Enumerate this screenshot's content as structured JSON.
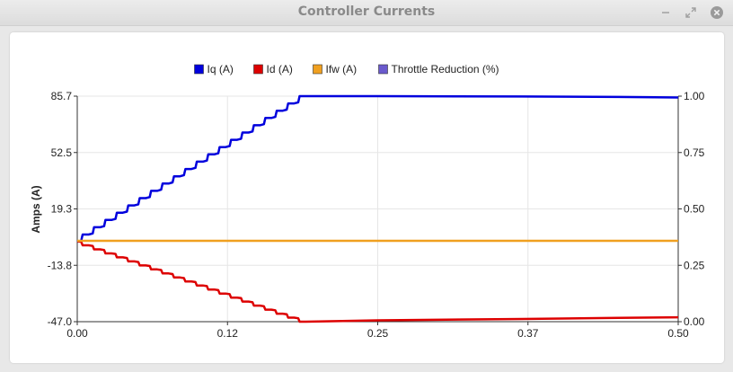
{
  "window": {
    "title": "Controller Currents",
    "buttons": [
      {
        "name": "minimize",
        "icon": "minimize-icon"
      },
      {
        "name": "maximize",
        "icon": "maximize-icon"
      },
      {
        "name": "close",
        "icon": "close-icon"
      }
    ]
  },
  "chart_data": {
    "type": "line",
    "title": "",
    "xlabel": "",
    "ylabel": "Amps (A)",
    "y2label": "",
    "xlim": [
      0,
      0.5
    ],
    "ylim": [
      -47.0,
      85.7
    ],
    "y2lim": [
      0,
      1
    ],
    "x_ticks": [
      "0.00",
      "0.12",
      "0.25",
      "0.37",
      "0.50"
    ],
    "y_ticks": [
      "85.7",
      "52.5",
      "19.3",
      "-13.8",
      "-47.0"
    ],
    "y2_ticks": [
      "1.00",
      "0.75",
      "0.50",
      "0.25",
      "0.00"
    ],
    "grid": true,
    "legend_position": "top-center",
    "series": [
      {
        "name": "Iq (A)",
        "color": "#0000dd",
        "axis": "left",
        "x": [
          0,
          0.19,
          0.25,
          0.37,
          0.45,
          0.5
        ],
        "y": [
          0,
          85.7,
          85.7,
          85.5,
          85.2,
          84.9
        ]
      },
      {
        "name": "Id (A)",
        "color": "#dd0000",
        "axis": "left",
        "x": [
          0,
          0.19,
          0.25,
          0.37,
          0.45,
          0.5
        ],
        "y": [
          0.3,
          -47.0,
          -46.2,
          -45.4,
          -44.8,
          -44.4
        ]
      },
      {
        "name": "Ifw (A)",
        "color": "#f0a020",
        "axis": "left",
        "x": [
          0,
          0.5
        ],
        "y": [
          0.6,
          0.6
        ]
      },
      {
        "name": "Throttle Reduction (%)",
        "color": "#6a5acd",
        "axis": "right",
        "x": [],
        "y": []
      }
    ]
  }
}
